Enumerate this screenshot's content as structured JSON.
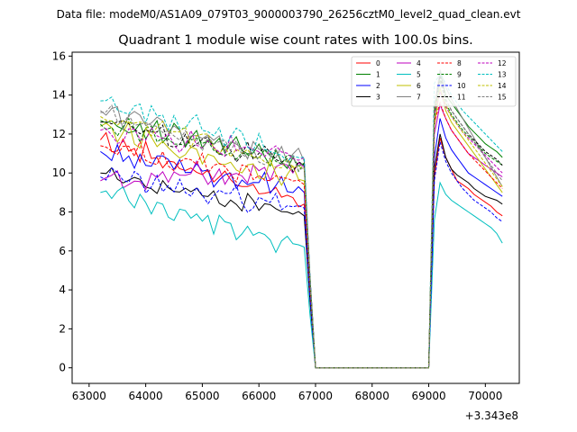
{
  "chart_data": {
    "type": "line",
    "suptitle": "Data file: modeM0/AS1A09_079T03_9000003790_26256cztM0_level2_quad_clean.evt",
    "title": "Quadrant 1 module wise count rates with 100.0s bins.",
    "xlabel": "",
    "ylabel": "",
    "x_offset_label": "+3.343e8",
    "xlim": [
      62700,
      70600
    ],
    "ylim": [
      -0.8,
      16.2
    ],
    "xticks": [
      63000,
      64000,
      65000,
      66000,
      67000,
      68000,
      69000,
      70000
    ],
    "xtick_labels": [
      "63000",
      "64000",
      "65000",
      "66000",
      "67000",
      "68000",
      "69000",
      "70000"
    ],
    "yticks": [
      0,
      2,
      4,
      6,
      8,
      10,
      12,
      14,
      16
    ],
    "ytick_labels": [
      "0",
      "2",
      "4",
      "6",
      "8",
      "10",
      "12",
      "14",
      "16"
    ],
    "grid": false,
    "legend_position": "upper right",
    "segments": {
      "seg1_x_start": 63200,
      "seg1_x_end": 66800,
      "x_step": 100,
      "drop_x": 66900,
      "zero_x_start": 67000,
      "zero_x_end": 69000,
      "seg2_x_start": 69100,
      "seg2_x_end": 70300
    },
    "series": [
      {
        "name": "0",
        "color": "#ff0000",
        "dash": "solid",
        "seg1_start": 11.7,
        "seg1_end": 8.4,
        "seg2": [
          9.8,
          11.8,
          10.8,
          10.2,
          9.6,
          9.4,
          9.2,
          8.9,
          8.7,
          8.5,
          8.3,
          8.0,
          7.8
        ]
      },
      {
        "name": "1",
        "color": "#008000",
        "dash": "solid",
        "seg1_start": 12.7,
        "seg1_end": 10.5,
        "seg2": [
          13.0,
          15.2,
          14.0,
          13.6,
          13.2,
          12.8,
          12.4,
          12.1,
          11.8,
          11.5,
          11.3,
          11.1,
          10.8
        ]
      },
      {
        "name": "2",
        "color": "#0000ff",
        "dash": "solid",
        "seg1_start": 11.1,
        "seg1_end": 9.0,
        "seg2": [
          10.8,
          12.8,
          11.8,
          11.2,
          10.8,
          10.4,
          10.0,
          9.8,
          9.6,
          9.4,
          9.2,
          9.0,
          8.8
        ]
      },
      {
        "name": "3",
        "color": "#000000",
        "dash": "solid",
        "seg1_start": 10.0,
        "seg1_end": 7.8,
        "seg2": [
          10.2,
          12.0,
          10.8,
          10.2,
          9.9,
          9.7,
          9.5,
          9.2,
          9.0,
          8.8,
          8.7,
          8.6,
          8.4
        ]
      },
      {
        "name": "4",
        "color": "#bf00bf",
        "dash": "solid",
        "seg1_start": 9.6,
        "seg1_end": 10.3,
        "seg2": [
          12.0,
          13.5,
          12.8,
          12.2,
          11.8,
          11.4,
          11.0,
          10.8,
          10.6,
          10.4,
          10.2,
          10.0,
          9.8
        ]
      },
      {
        "name": "5",
        "color": "#00bfbf",
        "dash": "solid",
        "seg1_start": 9.0,
        "seg1_end": 6.2,
        "seg2": [
          7.6,
          9.5,
          8.9,
          8.6,
          8.4,
          8.2,
          8.0,
          7.8,
          7.6,
          7.4,
          7.2,
          6.9,
          6.4
        ]
      },
      {
        "name": "6",
        "color": "#bfbf00",
        "dash": "solid",
        "seg1_start": 12.4,
        "seg1_end": 9.6,
        "seg2": [
          12.4,
          14.4,
          13.2,
          12.6,
          12.2,
          11.8,
          11.4,
          11.0,
          10.6,
          10.2,
          9.8,
          9.4,
          9.0
        ]
      },
      {
        "name": "7",
        "color": "#808080",
        "dash": "solid",
        "seg1_start": 13.2,
        "seg1_end": 10.6,
        "seg2": [
          13.4,
          15.3,
          14.4,
          13.8,
          13.3,
          12.8,
          12.3,
          11.8,
          11.3,
          10.8,
          10.3,
          9.8,
          9.3
        ]
      },
      {
        "name": "8",
        "color": "#ff0000",
        "dash": "dashed",
        "seg1_start": 11.4,
        "seg1_end": 9.4,
        "seg2": [
          12.6,
          13.6,
          12.8,
          12.2,
          11.8,
          11.4,
          11.0,
          10.7,
          10.4,
          10.1,
          9.8,
          9.5,
          9.2
        ]
      },
      {
        "name": "9",
        "color": "#008000",
        "dash": "dashed",
        "seg1_start": 12.5,
        "seg1_end": 10.5,
        "seg2": [
          12.8,
          14.8,
          13.6,
          13.0,
          12.6,
          12.2,
          11.9,
          11.6,
          11.3,
          11.0,
          10.8,
          10.6,
          10.4
        ]
      },
      {
        "name": "10",
        "color": "#0000ff",
        "dash": "dashed",
        "seg1_start": 9.8,
        "seg1_end": 8.2,
        "seg2": [
          9.6,
          11.6,
          10.6,
          10.0,
          9.6,
          9.2,
          8.9,
          8.6,
          8.4,
          8.2,
          8.0,
          7.7,
          7.5
        ]
      },
      {
        "name": "11",
        "color": "#000000",
        "dash": "dashed",
        "seg1_start": 12.6,
        "seg1_end": 10.4,
        "seg2": [
          13.2,
          15.0,
          13.8,
          13.2,
          12.8,
          12.4,
          12.0,
          11.7,
          11.4,
          11.1,
          10.9,
          10.7,
          10.4
        ]
      },
      {
        "name": "12",
        "color": "#bf00bf",
        "dash": "dashed",
        "seg1_start": 12.2,
        "seg1_end": 10.8,
        "seg2": [
          13.0,
          14.2,
          13.4,
          12.9,
          12.5,
          12.1,
          11.8,
          11.5,
          11.2,
          10.9,
          10.6,
          10.3,
          10.0
        ]
      },
      {
        "name": "13",
        "color": "#00bfbf",
        "dash": "dashed",
        "seg1_start": 13.7,
        "seg1_end": 10.8,
        "seg2": [
          14.6,
          15.1,
          14.6,
          14.0,
          13.6,
          13.2,
          12.9,
          12.6,
          12.3,
          12.0,
          11.7,
          11.4,
          11.1
        ]
      },
      {
        "name": "14",
        "color": "#bfbf00",
        "dash": "dashed",
        "seg1_start": 12.9,
        "seg1_end": 10.2,
        "seg2": [
          13.3,
          14.3,
          13.5,
          12.9,
          12.5,
          12.1,
          11.7,
          11.3,
          10.9,
          10.5,
          10.1,
          9.7,
          9.3
        ]
      },
      {
        "name": "15",
        "color": "#808080",
        "dash": "dashed",
        "seg1_start": 13.1,
        "seg1_end": 10.3,
        "seg2": [
          13.5,
          14.6,
          13.8,
          13.2,
          12.8,
          12.4,
          12.0,
          11.6,
          11.2,
          10.8,
          10.4,
          10.0,
          9.6
        ]
      }
    ]
  }
}
